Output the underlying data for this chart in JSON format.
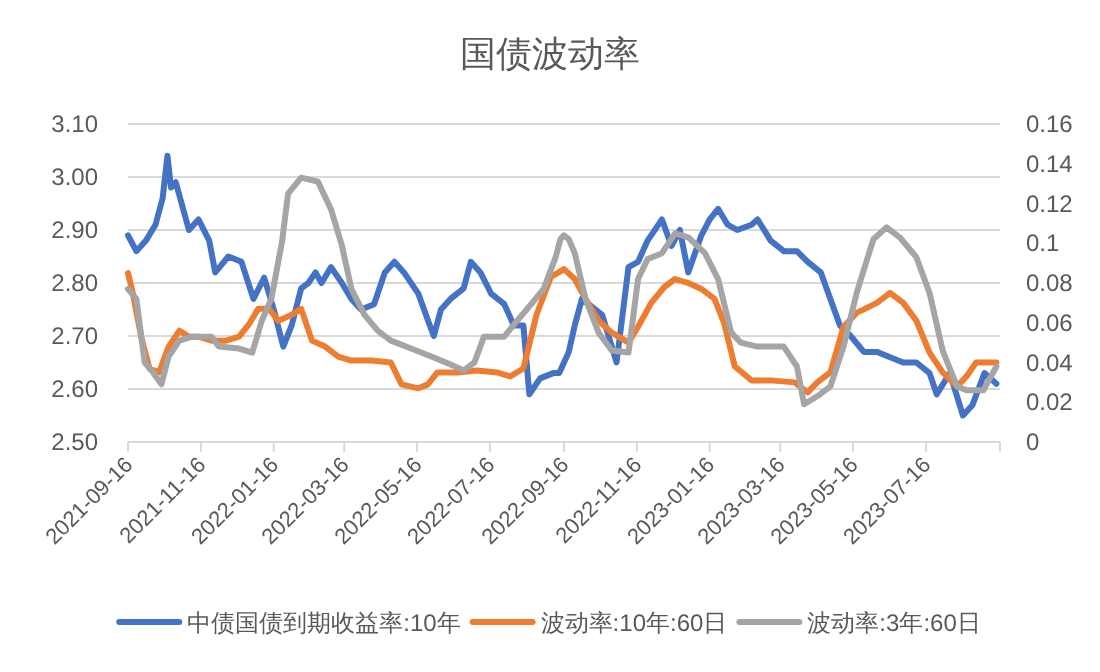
{
  "chart_data": {
    "type": "line",
    "title": "国债波动率",
    "grid": "y",
    "legend": "bottom",
    "line_style": "solid",
    "marker": "none",
    "xlim": [
      "2021-09-16",
      "2023-09-16"
    ],
    "xticks": [
      "2021-09-16",
      "2021-11-16",
      "2022-01-16",
      "2022-03-16",
      "2022-05-16",
      "2022-07-16",
      "2022-09-16",
      "2022-11-16",
      "2023-01-16",
      "2023-03-16",
      "2023-05-16",
      "2023-07-16",
      {
        "value": "2023-09-16",
        "label": null
      }
    ],
    "ylim": [
      2.5,
      3.1
    ],
    "yticks": [
      {
        "value": 2.5,
        "label": "2.50"
      },
      {
        "value": 2.6,
        "label": "2.60"
      },
      {
        "value": 2.7,
        "label": "2.70"
      },
      {
        "value": 2.8,
        "label": "2.80"
      },
      {
        "value": 2.9,
        "label": "2.90"
      },
      {
        "value": 3.0,
        "label": "3.00"
      },
      {
        "value": 3.1,
        "label": "3.10"
      }
    ],
    "y2lim": [
      0,
      0.16
    ],
    "y2ticks": [
      0,
      0.02,
      0.04,
      0.06,
      0.08,
      0.1,
      0.12,
      0.14,
      0.16
    ],
    "series": [
      {
        "name": "中债国债到期收益率:10年",
        "color": "#4472c4",
        "axis": "y",
        "x": [
          "2021-09-16",
          "2021-09-23",
          "2021-10-01",
          "2021-10-09",
          "2021-10-15",
          "2021-10-19",
          "2021-10-22",
          "2021-10-26",
          "2021-11-06",
          "2021-11-14",
          "2021-11-23",
          "2021-11-28",
          "2021-12-09",
          "2021-12-20",
          "2021-12-30",
          "2022-01-08",
          "2022-01-16",
          "2022-01-24",
          "2022-01-31",
          "2022-02-08",
          "2022-02-14",
          "2022-02-20",
          "2022-02-25",
          "2022-03-05",
          "2022-03-14",
          "2022-03-22",
          "2022-03-30",
          "2022-04-10",
          "2022-04-19",
          "2022-04-27",
          "2022-05-05",
          "2022-05-17",
          "2022-05-25",
          "2022-05-30",
          "2022-06-05",
          "2022-06-13",
          "2022-06-24",
          "2022-06-30",
          "2022-07-08",
          "2022-07-17",
          "2022-07-28",
          "2022-08-05",
          "2022-08-13",
          "2022-08-18",
          "2022-08-27",
          "2022-09-07",
          "2022-09-12",
          "2022-09-20",
          "2022-09-25",
          "2022-10-01",
          "2022-10-18",
          "2022-10-30",
          "2022-11-09",
          "2022-11-17",
          "2022-11-25",
          "2022-12-07",
          "2022-12-15",
          "2022-12-22",
          "2022-12-29",
          "2023-01-09",
          "2023-01-16",
          "2023-01-23",
          "2023-01-31",
          "2023-02-08",
          "2023-02-20",
          "2023-02-25",
          "2023-03-08",
          "2023-03-19",
          "2023-03-30",
          "2023-04-08",
          "2023-04-19",
          "2023-04-27",
          "2023-05-05",
          "2023-05-14",
          "2023-05-25",
          "2023-06-05",
          "2023-06-16",
          "2023-06-27",
          "2023-07-08",
          "2023-07-19",
          "2023-07-25",
          "2023-08-05",
          "2023-08-16",
          "2023-08-24",
          "2023-09-03",
          "2023-09-13"
        ],
        "values": [
          2.89,
          2.86,
          2.88,
          2.91,
          2.96,
          3.04,
          2.98,
          2.99,
          2.9,
          2.92,
          2.88,
          2.82,
          2.85,
          2.84,
          2.77,
          2.81,
          2.75,
          2.68,
          2.72,
          2.79,
          2.8,
          2.82,
          2.8,
          2.83,
          2.8,
          2.77,
          2.75,
          2.76,
          2.82,
          2.84,
          2.82,
          2.78,
          2.73,
          2.7,
          2.75,
          2.77,
          2.79,
          2.84,
          2.82,
          2.78,
          2.76,
          2.72,
          2.72,
          2.59,
          2.62,
          2.63,
          2.63,
          2.67,
          2.72,
          2.77,
          2.74,
          2.65,
          2.83,
          2.84,
          2.88,
          2.92,
          2.87,
          2.9,
          2.82,
          2.89,
          2.92,
          2.94,
          2.91,
          2.9,
          2.91,
          2.92,
          2.88,
          2.86,
          2.86,
          2.84,
          2.82,
          2.77,
          2.72,
          2.7,
          2.67,
          2.67,
          2.66,
          2.65,
          2.65,
          2.63,
          2.59,
          2.63,
          2.55,
          2.57,
          2.63,
          2.61
        ]
      },
      {
        "name": "波动率:10年:60日",
        "color": "#ed7d31",
        "axis": "y2",
        "x": [
          "2021-09-16",
          "2021-09-20",
          "2021-09-27",
          "2021-10-04",
          "2021-10-12",
          "2021-10-20",
          "2021-10-29",
          "2021-11-06",
          "2021-11-14",
          "2021-11-25",
          "2021-12-07",
          "2021-12-18",
          "2021-12-26",
          "2022-01-03",
          "2022-01-12",
          "2022-01-20",
          "2022-01-31",
          "2022-02-08",
          "2022-02-17",
          "2022-02-28",
          "2022-03-11",
          "2022-03-22",
          "2022-04-08",
          "2022-04-24",
          "2022-05-03",
          "2022-05-17",
          "2022-05-25",
          "2022-06-02",
          "2022-06-19",
          "2022-07-05",
          "2022-07-22",
          "2022-08-02",
          "2022-08-13",
          "2022-08-24",
          "2022-09-05",
          "2022-09-16",
          "2022-09-25",
          "2022-10-04",
          "2022-10-15",
          "2022-10-26",
          "2022-11-09",
          "2022-11-17",
          "2022-11-28",
          "2022-12-09",
          "2022-12-18",
          "2022-12-29",
          "2023-01-09",
          "2023-01-20",
          "2023-01-28",
          "2023-02-06",
          "2023-02-20",
          "2023-03-08",
          "2023-03-28",
          "2023-04-08",
          "2023-04-16",
          "2023-04-27",
          "2023-05-08",
          "2023-05-19",
          "2023-06-05",
          "2023-06-16",
          "2023-06-27",
          "2023-07-08",
          "2023-07-19",
          "2023-07-30",
          "2023-08-11",
          "2023-08-19",
          "2023-08-27",
          "2023-09-13"
        ],
        "values": [
          0.085,
          0.075,
          0.053,
          0.037,
          0.035,
          0.048,
          0.056,
          0.053,
          0.053,
          0.051,
          0.051,
          0.053,
          0.059,
          0.067,
          0.067,
          0.061,
          0.064,
          0.067,
          0.051,
          0.048,
          0.043,
          0.041,
          0.041,
          0.04,
          0.029,
          0.027,
          0.029,
          0.035,
          0.035,
          0.036,
          0.035,
          0.033,
          0.037,
          0.064,
          0.083,
          0.087,
          0.082,
          0.072,
          0.061,
          0.055,
          0.05,
          0.058,
          0.07,
          0.078,
          0.082,
          0.08,
          0.077,
          0.072,
          0.06,
          0.038,
          0.031,
          0.031,
          0.03,
          0.025,
          0.03,
          0.035,
          0.058,
          0.065,
          0.07,
          0.075,
          0.07,
          0.061,
          0.045,
          0.035,
          0.028,
          0.033,
          0.04,
          0.04
        ]
      },
      {
        "name": "波动率:3年:60日",
        "color": "#a5a5a5",
        "axis": "y2",
        "x": [
          "2021-09-16",
          "2021-09-23",
          "2021-09-30",
          "2021-10-07",
          "2021-10-14",
          "2021-10-20",
          "2021-10-29",
          "2021-11-09",
          "2021-11-25",
          "2021-12-01",
          "2021-12-18",
          "2021-12-29",
          "2022-01-06",
          "2022-01-14",
          "2022-01-23",
          "2022-01-28",
          "2022-02-08",
          "2022-02-22",
          "2022-03-05",
          "2022-03-14",
          "2022-03-22",
          "2022-04-02",
          "2022-04-13",
          "2022-04-24",
          "2022-05-11",
          "2022-05-28",
          "2022-06-13",
          "2022-06-24",
          "2022-07-03",
          "2022-07-11",
          "2022-07-28",
          "2022-08-05",
          "2022-08-19",
          "2022-08-30",
          "2022-09-09",
          "2022-09-13",
          "2022-09-16",
          "2022-09-20",
          "2022-09-25",
          "2022-10-04",
          "2022-10-15",
          "2022-10-26",
          "2022-11-09",
          "2022-11-17",
          "2022-11-25",
          "2022-12-07",
          "2022-12-18",
          "2022-12-29",
          "2023-01-12",
          "2023-01-23",
          "2023-02-03",
          "2023-02-11",
          "2023-02-25",
          "2023-03-19",
          "2023-03-30",
          "2023-04-05",
          "2023-04-16",
          "2023-04-27",
          "2023-05-08",
          "2023-05-19",
          "2023-06-02",
          "2023-06-13",
          "2023-06-24",
          "2023-07-08",
          "2023-07-19",
          "2023-07-30",
          "2023-08-11",
          "2023-08-19",
          "2023-09-02",
          "2023-09-13"
        ],
        "values": [
          0.077,
          0.072,
          0.04,
          0.035,
          0.029,
          0.043,
          0.051,
          0.053,
          0.053,
          0.048,
          0.047,
          0.045,
          0.061,
          0.072,
          0.101,
          0.125,
          0.133,
          0.131,
          0.117,
          0.099,
          0.077,
          0.064,
          0.056,
          0.051,
          0.047,
          0.043,
          0.039,
          0.036,
          0.04,
          0.053,
          0.053,
          0.059,
          0.069,
          0.077,
          0.093,
          0.102,
          0.104,
          0.102,
          0.095,
          0.072,
          0.055,
          0.046,
          0.045,
          0.082,
          0.092,
          0.095,
          0.105,
          0.103,
          0.095,
          0.082,
          0.055,
          0.05,
          0.048,
          0.048,
          0.038,
          0.019,
          0.023,
          0.028,
          0.048,
          0.075,
          0.102,
          0.108,
          0.103,
          0.093,
          0.075,
          0.046,
          0.028,
          0.026,
          0.026,
          0.038
        ]
      }
    ]
  }
}
